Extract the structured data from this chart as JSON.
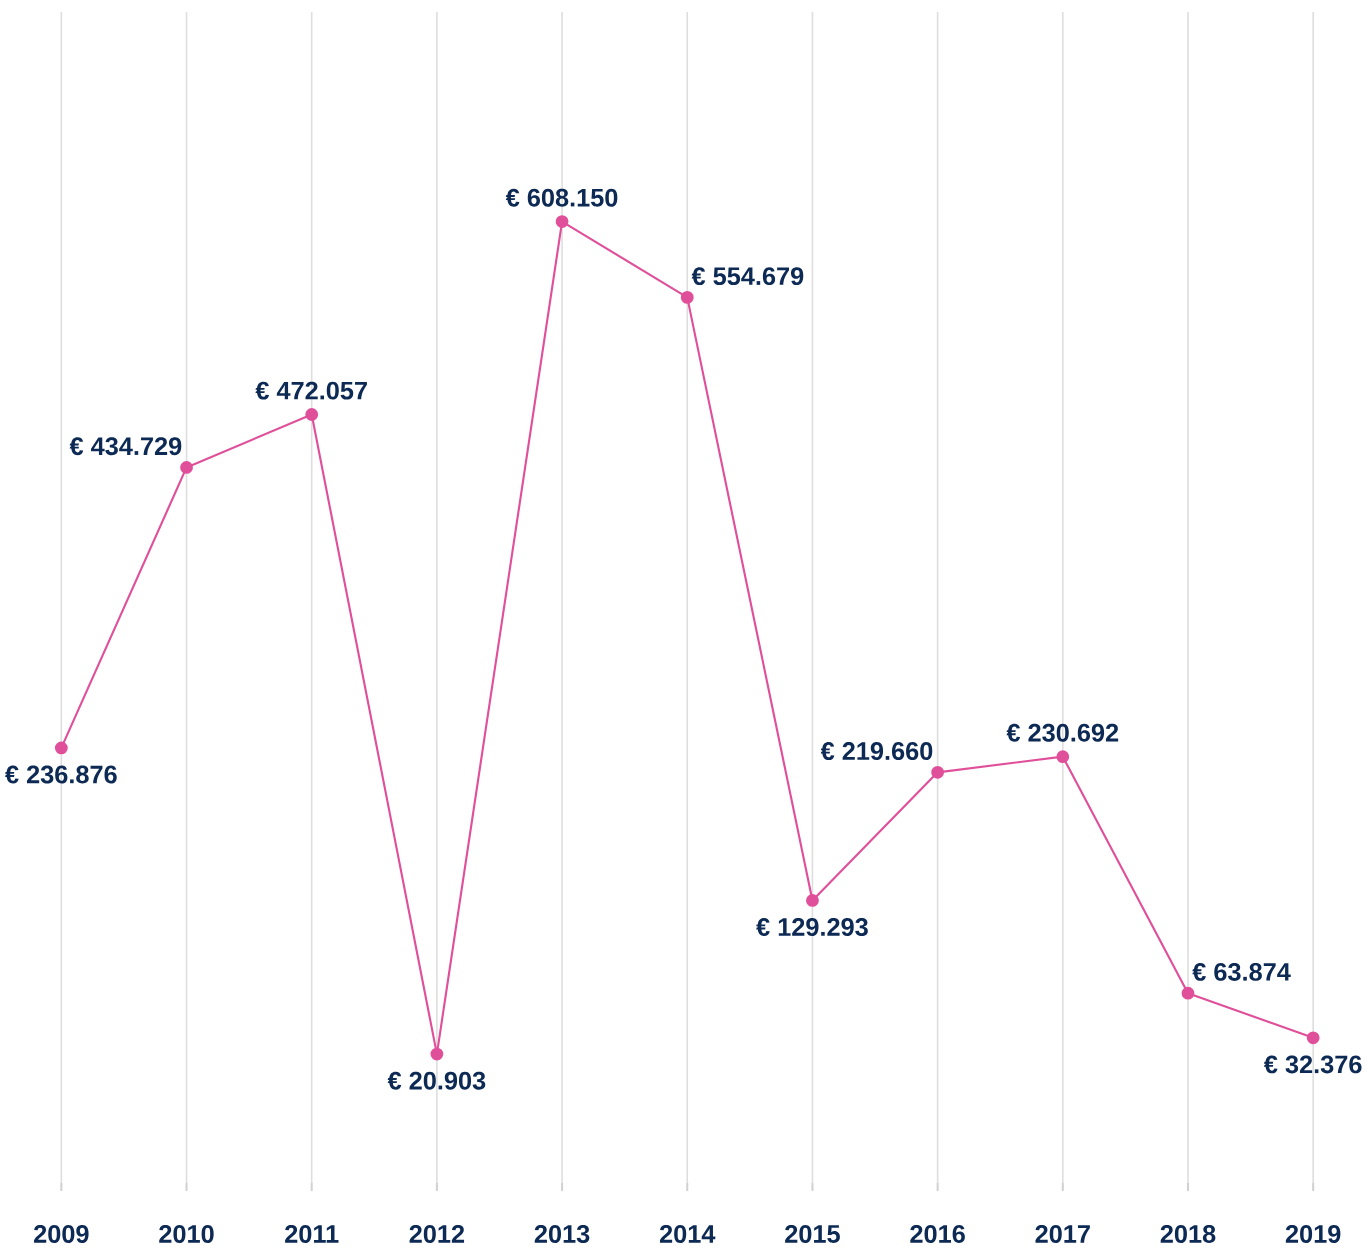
{
  "chart_data": {
    "type": "line",
    "categories": [
      "2009",
      "2010",
      "2011",
      "2012",
      "2013",
      "2014",
      "2015",
      "2016",
      "2017",
      "2018",
      "2019"
    ],
    "series": [
      {
        "color": "#e0509a",
        "values": [
          236876,
          434729,
          472057,
          20903,
          608150,
          554679,
          129293,
          219660,
          230692,
          63874,
          32376
        ],
        "value_labels": [
          "€ 236.876",
          "€ 434.729",
          "€ 472.057",
          "€ 20.903",
          "€ 608.150",
          "€ 554.679",
          "€ 129.293",
          "€ 219.660",
          "€ 230.692",
          "€ 63.874",
          "€ 32.376"
        ]
      }
    ],
    "ylim": [
      -70000,
      756000
    ],
    "grid": "x",
    "marker": "circle",
    "line_style": "solid"
  }
}
